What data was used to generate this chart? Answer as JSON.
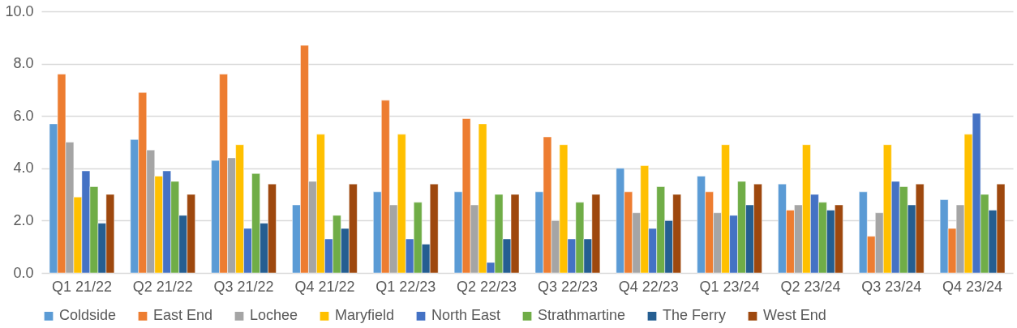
{
  "chart_data": {
    "type": "bar",
    "categories": [
      "Q1 21/22",
      "Q2 21/22",
      "Q3 21/22",
      "Q4 21/22",
      "Q1 22/23",
      "Q2 22/23",
      "Q3 22/23",
      "Q4 22/23",
      "Q1 23/24",
      "Q2 23/24",
      "Q3 23/24",
      "Q4 23/24"
    ],
    "series": [
      {
        "name": "Coldside",
        "color": "#5b9bd5",
        "values": [
          5.7,
          5.1,
          4.3,
          2.6,
          3.1,
          3.1,
          3.1,
          4.0,
          3.7,
          3.4,
          3.1,
          2.8
        ]
      },
      {
        "name": "East End",
        "color": "#ed7d31",
        "values": [
          7.6,
          6.9,
          7.6,
          8.7,
          6.6,
          5.9,
          5.2,
          3.1,
          3.1,
          2.4,
          1.4,
          1.7
        ]
      },
      {
        "name": "Lochee",
        "color": "#a5a5a5",
        "values": [
          5.0,
          4.7,
          4.4,
          3.5,
          2.6,
          2.6,
          2.0,
          2.3,
          2.3,
          2.6,
          2.3,
          2.6
        ]
      },
      {
        "name": "Maryfield",
        "color": "#ffc000",
        "values": [
          2.9,
          3.7,
          4.9,
          5.3,
          5.3,
          5.7,
          4.9,
          4.1,
          4.9,
          4.9,
          4.9,
          5.3
        ]
      },
      {
        "name": "North East",
        "color": "#4472c4",
        "values": [
          3.9,
          3.9,
          1.7,
          1.3,
          1.3,
          0.4,
          1.3,
          1.7,
          2.2,
          3.0,
          3.5,
          6.1
        ]
      },
      {
        "name": "Strathmartine",
        "color": "#70ad47",
        "values": [
          3.3,
          3.5,
          3.8,
          2.2,
          2.7,
          3.0,
          2.7,
          3.3,
          3.5,
          2.7,
          3.3,
          3.0
        ]
      },
      {
        "name": "The Ferry",
        "color": "#255e91",
        "values": [
          1.9,
          2.2,
          1.9,
          1.7,
          1.1,
          1.3,
          1.3,
          2.0,
          2.6,
          2.4,
          2.6,
          2.4
        ]
      },
      {
        "name": "West End",
        "color": "#9e480e",
        "values": [
          3.0,
          3.0,
          3.4,
          3.4,
          3.4,
          3.0,
          3.0,
          3.0,
          3.4,
          2.6,
          3.4,
          3.4
        ]
      }
    ],
    "ylim": [
      0,
      10
    ],
    "yticks": [
      {
        "value": 0,
        "label": "0.0"
      },
      {
        "value": 2,
        "label": "2.0"
      },
      {
        "value": 4,
        "label": "4.0"
      },
      {
        "value": 6,
        "label": "6.0"
      },
      {
        "value": 8,
        "label": "8.0"
      },
      {
        "value": 10,
        "label": "10.0"
      }
    ],
    "grid": "y",
    "legend": "bottom"
  }
}
